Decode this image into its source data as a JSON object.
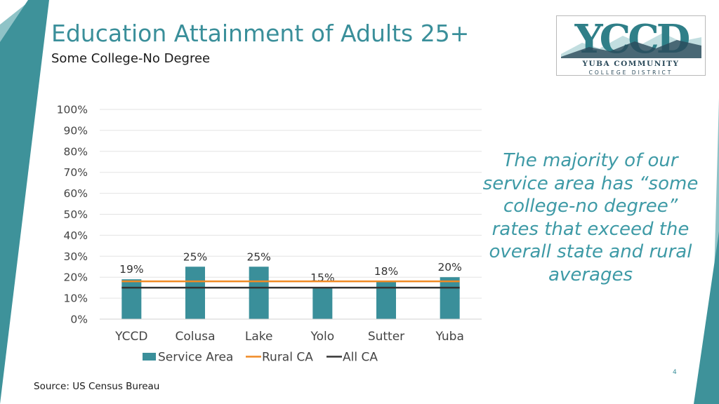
{
  "slide": {
    "title": "Education Attainment of Adults 25+",
    "subtitle": "Some College-No Degree",
    "callout": "The majority of our service area has “some college-no degree” rates that exceed the overall state and rural averages",
    "page_number": "4",
    "source": "Source: US Census Bureau"
  },
  "logo": {
    "letters": "YCCD",
    "line1": "YUBA COMMUNITY",
    "line2": "COLLEGE DISTRICT"
  },
  "colors": {
    "accent": "#3a8f9a",
    "bar": "#3a8f9a",
    "rural": "#f08a24",
    "all": "#333333",
    "decor_dark": "#3a8f96",
    "decor_light": "#7fb8bc"
  },
  "chart_data": {
    "type": "bar",
    "categories": [
      "YCCD",
      "Colusa",
      "Lake",
      "Yolo",
      "Sutter",
      "Yuba"
    ],
    "series": [
      {
        "name": "Service Area",
        "kind": "bar",
        "values": [
          19,
          25,
          25,
          15,
          18,
          20
        ],
        "labels": [
          "19%",
          "25%",
          "25%",
          "15%",
          "18%",
          "20%"
        ]
      },
      {
        "name": "Rural CA",
        "kind": "line",
        "values": [
          18,
          18,
          18,
          18,
          18,
          18
        ]
      },
      {
        "name": "All CA",
        "kind": "line",
        "values": [
          15,
          15,
          15,
          15,
          15,
          15
        ]
      }
    ],
    "ylim": [
      0,
      100
    ],
    "yticks": [
      "0%",
      "10%",
      "20%",
      "30%",
      "40%",
      "50%",
      "60%",
      "70%",
      "80%",
      "90%",
      "100%"
    ],
    "grid": true,
    "legend_position": "bottom"
  }
}
